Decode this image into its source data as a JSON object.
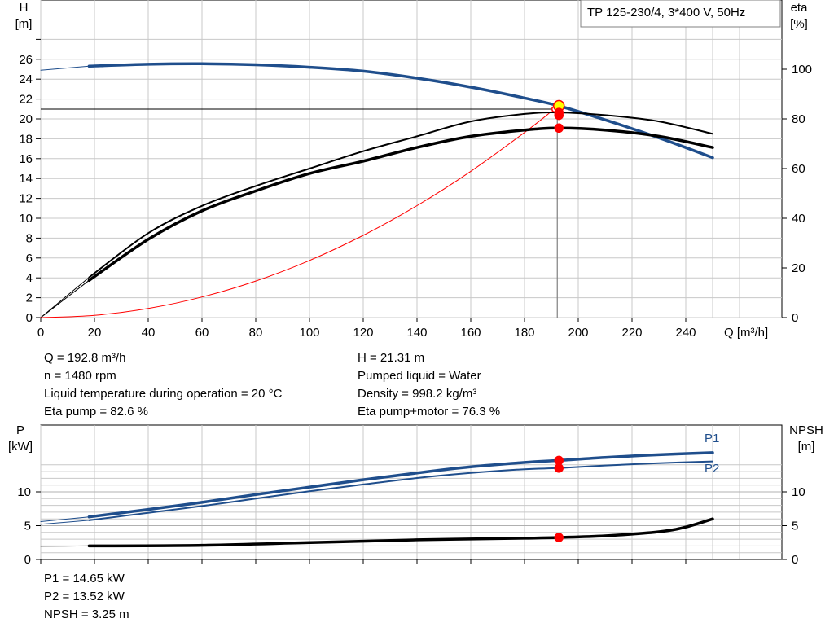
{
  "chart_data": [
    {
      "type": "line",
      "panel": "head-and-efficiency",
      "title": "TP 125-230/4, 3*400 V, 50Hz",
      "xlabel": "Q [m³/h]",
      "ylabel": "H",
      "ylabel_unit": "[m]",
      "y2label": "eta",
      "y2label_unit": "[%]",
      "xlim": [
        0,
        270
      ],
      "ylim": [
        0,
        28
      ],
      "y2lim": [
        0,
        112
      ],
      "x_ticks": [
        0,
        20,
        40,
        60,
        80,
        100,
        120,
        140,
        160,
        180,
        200,
        220,
        240
      ],
      "y_ticks": [
        0,
        2,
        4,
        6,
        8,
        10,
        12,
        14,
        16,
        18,
        20,
        22,
        24,
        26
      ],
      "y2_ticks": [
        0,
        20,
        40,
        60,
        80,
        100
      ],
      "grid": true,
      "series": [
        {
          "role": "head",
          "color": "#1f4e8c",
          "x": [
            18,
            40,
            60,
            80,
            100,
            120,
            140,
            160,
            180,
            192.8,
            210,
            230,
            250
          ],
          "y": [
            25.3,
            25.5,
            25.55,
            25.45,
            25.2,
            24.8,
            24.1,
            23.2,
            22.1,
            21.31,
            19.9,
            18.1,
            16.1
          ]
        },
        {
          "role": "eta-pump",
          "color": "#000000",
          "x": [
            18,
            40,
            60,
            80,
            100,
            120,
            140,
            160,
            180,
            192.8,
            210,
            230,
            250
          ],
          "y": [
            16.2,
            34,
            45,
            53,
            60,
            67,
            73,
            79,
            82,
            82.6,
            81.5,
            79,
            74
          ]
        },
        {
          "role": "eta-pump-motor",
          "color": "#000000",
          "x": [
            18,
            40,
            60,
            80,
            100,
            120,
            140,
            160,
            180,
            192.8,
            210,
            230,
            250
          ],
          "y": [
            15,
            31.5,
            43,
            51,
            58,
            63,
            68.5,
            73,
            75.5,
            76.3,
            75.5,
            73,
            68.5
          ]
        },
        {
          "role": "system-curve",
          "color": "#ff0000",
          "x": [
            0,
            20,
            40,
            60,
            80,
            100,
            120,
            140,
            160,
            180,
            190
          ],
          "y": [
            0,
            0.23,
            0.92,
            2.07,
            3.68,
            5.75,
            8.28,
            11.27,
            14.72,
            18.63,
            20.75
          ]
        }
      ],
      "operating_point": {
        "Q": 192.8,
        "H": 21.31,
        "eta_pump": 82.6,
        "eta_pump_motor": 76.3
      }
    },
    {
      "type": "line",
      "panel": "power-and-npsh",
      "ylabel": "P",
      "ylabel_unit": "[kW]",
      "y2label": "NPSH",
      "y2label_unit": "[m]",
      "xlim": [
        0,
        270
      ],
      "ylim": [
        0,
        16
      ],
      "y2lim": [
        0,
        16
      ],
      "y_ticks": [
        0,
        5,
        10
      ],
      "y2_ticks": [
        0,
        5,
        10
      ],
      "grid": true,
      "series": [
        {
          "name": "P1",
          "color": "#1f4e8c",
          "x": [
            18,
            40,
            60,
            80,
            100,
            120,
            140,
            160,
            180,
            192.8,
            210,
            230,
            250
          ],
          "y": [
            6.3,
            7.4,
            8.45,
            9.6,
            10.7,
            11.8,
            12.8,
            13.7,
            14.35,
            14.65,
            15.1,
            15.5,
            15.8
          ]
        },
        {
          "name": "P2",
          "color": "#1f4e8c",
          "x": [
            18,
            40,
            60,
            80,
            100,
            120,
            140,
            160,
            180,
            192.8,
            210,
            230,
            250
          ],
          "y": [
            5.8,
            6.9,
            7.9,
            9.0,
            10.1,
            11.1,
            12.05,
            12.8,
            13.35,
            13.52,
            13.9,
            14.25,
            14.5
          ]
        },
        {
          "role": "npsh",
          "color": "#000000",
          "x": [
            18,
            60,
            100,
            140,
            180,
            192.8,
            210,
            230,
            240,
            250
          ],
          "y": [
            2.0,
            2.1,
            2.5,
            2.9,
            3.15,
            3.25,
            3.5,
            4.1,
            4.8,
            6.0
          ]
        }
      ],
      "operating_point": {
        "Q": 192.8,
        "P1": 14.65,
        "P2": 13.52,
        "NPSH": 3.25
      }
    }
  ],
  "results_top": {
    "q": "Q = 192.8 m³/h",
    "n": "n = 1480 rpm",
    "temp": "Liquid temperature during operation = 20 °C",
    "eta_pump": "Eta pump = 82.6 %",
    "h": "H = 21.31 m",
    "liquid": "Pumped liquid = Water",
    "density": "Density = 998.2 kg/m³",
    "eta_pump_motor": "Eta pump+motor = 76.3 %"
  },
  "results_bottom": {
    "p1": "P1 = 14.65 kW",
    "p2": "P2 = 13.52 kW",
    "npsh": "NPSH = 3.25 m"
  },
  "colors": {
    "curve_blue": "#1f4e8c",
    "system_red": "#ff0000",
    "marker_red": "#ff0000",
    "marker_yellow": "#ffff00",
    "grid": "#c8c8c8"
  }
}
